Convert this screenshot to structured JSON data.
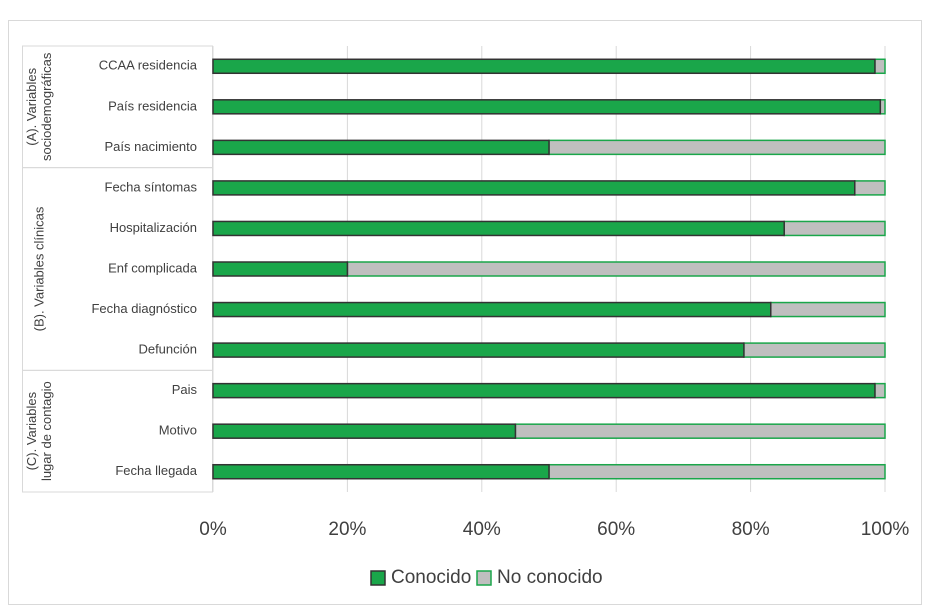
{
  "chart_data": {
    "type": "bar",
    "stacked": true,
    "orientation": "horizontal",
    "title": "",
    "xlabel": "",
    "ylabel": "",
    "xlim": [
      0,
      100
    ],
    "x_ticks": [
      "0%",
      "20%",
      "40%",
      "60%",
      "80%",
      "100%"
    ],
    "grid": "vertical",
    "legend_position": "bottom",
    "colors": {
      "known": "#1aa64a",
      "unknown": "#bfbfbf",
      "known_edge": "#333333",
      "unknown_edge": "#1aa64a"
    },
    "groups": [
      {
        "label_lines": [
          "(A). Variables",
          "sociodemográficas"
        ],
        "categories": [
          "CCAA residencia",
          "País residencia",
          "País nacimiento"
        ]
      },
      {
        "label_lines": [
          "(B). Variables clínicas"
        ],
        "categories": [
          "Fecha síntomas",
          "Hospitalización",
          "Enf complicada",
          "Fecha diagnóstico",
          "Defunción"
        ]
      },
      {
        "label_lines": [
          "(C). Variables",
          "lugar de contagio"
        ],
        "categories": [
          "Pais",
          "Motivo",
          "Fecha llegada"
        ]
      }
    ],
    "series": [
      {
        "name": "Conocido",
        "values": [
          98.5,
          99.3,
          50,
          95.5,
          85,
          20,
          83,
          79,
          98.5,
          45,
          50
        ]
      },
      {
        "name": "No conocido",
        "values": [
          1.5,
          0.7,
          50,
          4.5,
          15,
          80,
          17,
          21,
          1.5,
          55,
          50
        ]
      }
    ]
  }
}
